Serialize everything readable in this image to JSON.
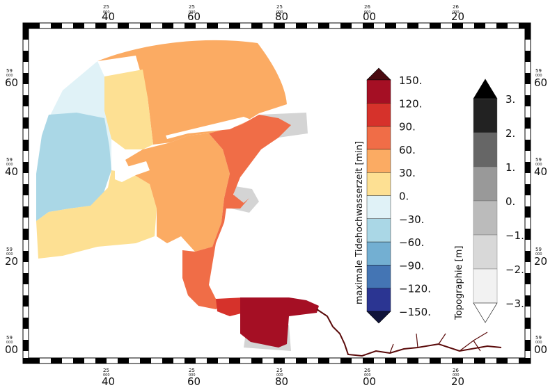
{
  "map": {
    "top_ticks": [
      {
        "small": "25",
        "sub": "000",
        "big": "40"
      },
      {
        "small": "25",
        "sub": "000",
        "big": "60"
      },
      {
        "small": "25",
        "sub": "000",
        "big": "80"
      },
      {
        "small": "26",
        "sub": "000",
        "big": "00"
      },
      {
        "small": "26",
        "sub": "000",
        "big": "20"
      }
    ],
    "side_ticks": [
      {
        "small": "59",
        "sub": "000",
        "big": "60"
      },
      {
        "small": "59",
        "sub": "000",
        "big": "40"
      },
      {
        "small": "59",
        "sub": "000",
        "big": "20"
      },
      {
        "small": "59",
        "sub": "000",
        "big": "00"
      }
    ]
  },
  "legend_main": {
    "title": "maximale Tidehochwasserzeit [min]",
    "labels": [
      "150.",
      "120.",
      "90.",
      "60.",
      "30.",
      "0.",
      "−30.",
      "−60.",
      "−90.",
      "−120.",
      "−150."
    ],
    "colors": [
      "#4a0a10",
      "#a50f24",
      "#d6322b",
      "#f06d47",
      "#fbab63",
      "#fde093",
      "#e0f2f7",
      "#aad7e6",
      "#73afd2",
      "#4475b4",
      "#2b3592",
      "#10143a"
    ]
  },
  "legend_topo": {
    "title": "Topographie [m]",
    "labels": [
      "3.",
      "2.",
      "1.",
      "0.",
      "−1.",
      "−2.",
      "−3."
    ],
    "colors": [
      "#000000",
      "#222222",
      "#666666",
      "#999999",
      "#bbbbbb",
      "#d8d8d8",
      "#f2f2f2",
      "#ffffff"
    ]
  },
  "colors": {
    "river": "#5a0a0a",
    "land_grey": "#d0d0d0"
  }
}
